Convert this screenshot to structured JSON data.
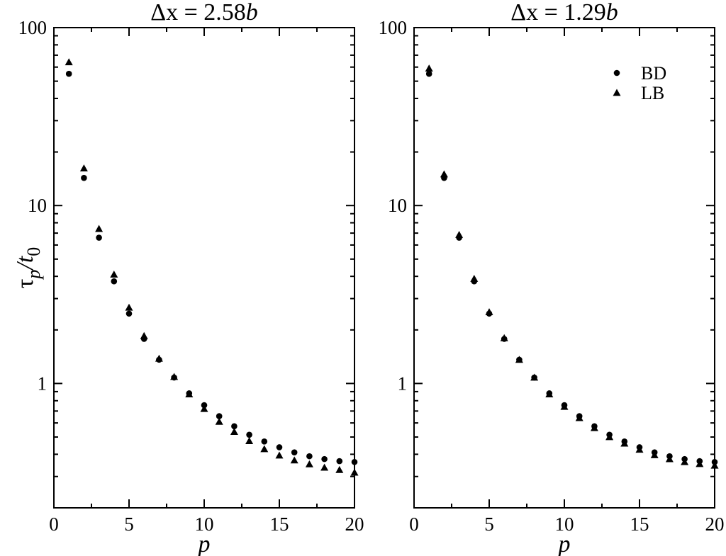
{
  "chart_data": [
    {
      "type": "scatter",
      "title": {
        "main": "Δx = 2.58",
        "italic_suffix": "b"
      },
      "xlabel": "p",
      "ylabel": {
        "base": "τ",
        "sub": "p",
        "mid": "/t",
        "sub2": "0"
      },
      "xlim": [
        0,
        20
      ],
      "ylim": [
        0.2,
        100
      ],
      "yscale": "log",
      "x_ticks": [
        "0",
        "5",
        "10",
        "15",
        "20"
      ],
      "y_ticks": [
        "1",
        "10",
        "100"
      ],
      "legend": null,
      "series": [
        {
          "name": "BD",
          "marker": "circle",
          "x": [
            1,
            2,
            3,
            4,
            5,
            6,
            7,
            8,
            9,
            10,
            11,
            12,
            13,
            14,
            15,
            16,
            17,
            18,
            19,
            20
          ],
          "y": [
            55.0,
            14.3,
            6.6,
            3.75,
            2.47,
            1.78,
            1.36,
            1.08,
            0.88,
            0.755,
            0.655,
            0.575,
            0.515,
            0.472,
            0.438,
            0.41,
            0.39,
            0.376,
            0.366,
            0.362
          ]
        },
        {
          "name": "LB",
          "marker": "triangle",
          "x": [
            1,
            2,
            3,
            4,
            5,
            6,
            7,
            8,
            9,
            10,
            11,
            12,
            13,
            14,
            15,
            16,
            17,
            18,
            19,
            20
          ],
          "y": [
            64.0,
            16.2,
            7.4,
            4.1,
            2.67,
            1.85,
            1.38,
            1.09,
            0.87,
            0.72,
            0.61,
            0.535,
            0.475,
            0.428,
            0.394,
            0.37,
            0.352,
            0.337,
            0.327,
            0.316
          ]
        }
      ]
    },
    {
      "type": "scatter",
      "title": {
        "main": "Δx = 1.29",
        "italic_suffix": "b"
      },
      "xlabel": "p",
      "ylabel": "",
      "xlim": [
        0,
        20
      ],
      "ylim": [
        0.2,
        100
      ],
      "yscale": "log",
      "x_ticks": [
        "0",
        "5",
        "10",
        "15",
        "20"
      ],
      "y_ticks": [
        "1",
        "10",
        "100"
      ],
      "legend": "top-right",
      "series": [
        {
          "name": "BD",
          "marker": "circle",
          "x": [
            1,
            2,
            3,
            4,
            5,
            6,
            7,
            8,
            9,
            10,
            11,
            12,
            13,
            14,
            15,
            16,
            17,
            18,
            19,
            20
          ],
          "y": [
            55.0,
            14.3,
            6.6,
            3.75,
            2.47,
            1.78,
            1.36,
            1.08,
            0.88,
            0.755,
            0.655,
            0.575,
            0.515,
            0.472,
            0.438,
            0.41,
            0.39,
            0.376,
            0.366,
            0.362
          ]
        },
        {
          "name": "LB",
          "marker": "triangle",
          "x": [
            1,
            2,
            3,
            4,
            5,
            6,
            7,
            8,
            9,
            10,
            11,
            12,
            13,
            14,
            15,
            16,
            17,
            18,
            19,
            20
          ],
          "y": [
            59.0,
            15.0,
            6.85,
            3.88,
            2.52,
            1.8,
            1.36,
            1.08,
            0.87,
            0.74,
            0.64,
            0.562,
            0.5,
            0.46,
            0.425,
            0.396,
            0.376,
            0.362,
            0.353,
            0.346
          ]
        }
      ]
    }
  ]
}
